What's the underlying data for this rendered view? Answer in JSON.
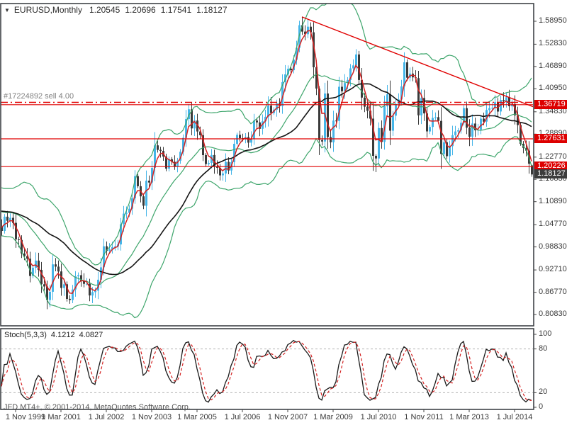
{
  "title": {
    "symbol": "EURUSD,Monthly",
    "open": "1.20545",
    "high": "1.20696",
    "low": "1.17541",
    "close": "1.18127"
  },
  "order_line": {
    "label": "#17224892 sell 4.00",
    "price": 1.3735
  },
  "footer": {
    "copyright": "JFD MT4+, © 2001-2014, MetaQuotes Software Corp."
  },
  "colors": {
    "up_candle": "#45b5e8",
    "down_candle": "#3a3a3a",
    "band": "#3da56b",
    "ma_fast": "#d42222",
    "ma_slow": "#141414",
    "hline": "#e00000",
    "badge_red": "#dd0000",
    "badge_dark": "#3c3c3c",
    "axis_text": "#3a3a3a",
    "border": "#3f4347",
    "grid_dash": "#b4b4b4",
    "stoch_main": "#1a1a1a",
    "stoch_signal": "#d42222",
    "tick": "#444444"
  },
  "price_axis": {
    "labels": [
      {
        "text": "1.58950",
        "price": 1.5895,
        "style": "plain"
      },
      {
        "text": "1.52830",
        "price": 1.5283,
        "style": "plain"
      },
      {
        "text": "1.46890",
        "price": 1.4689,
        "style": "plain"
      },
      {
        "text": "1.40950",
        "price": 1.4095,
        "style": "plain"
      },
      {
        "text": "1.36719",
        "price": 1.36719,
        "style": "red"
      },
      {
        "text": "1.34830",
        "price": 1.3483,
        "style": "plain"
      },
      {
        "text": "1.28890",
        "price": 1.2889,
        "style": "plain"
      },
      {
        "text": "1.27631",
        "price": 1.27631,
        "style": "red"
      },
      {
        "text": "1.22770",
        "price": 1.2277,
        "style": "plain"
      },
      {
        "text": "1.20226",
        "price": 1.20226,
        "style": "red"
      },
      {
        "text": "1.18127",
        "price": 1.18127,
        "style": "dark"
      },
      {
        "text": "1.16830",
        "price": 1.1683,
        "style": "plain"
      },
      {
        "text": "1.10890",
        "price": 1.1089,
        "style": "plain"
      },
      {
        "text": "1.04770",
        "price": 1.0477,
        "style": "plain"
      },
      {
        "text": "0.98830",
        "price": 0.9883,
        "style": "plain"
      },
      {
        "text": "0.92710",
        "price": 0.9271,
        "style": "plain"
      },
      {
        "text": "0.86770",
        "price": 0.8677,
        "style": "plain"
      },
      {
        "text": "0.80830",
        "price": 0.8083,
        "style": "plain"
      }
    ]
  },
  "date_axis": {
    "labels": [
      {
        "text": "1 Nov 1999",
        "month_index": 5
      },
      {
        "text": "1 Mar 2001",
        "month_index": 21
      },
      {
        "text": "1 Jul 2002",
        "month_index": 37
      },
      {
        "text": "1 Nov 2003",
        "month_index": 53
      },
      {
        "text": "1 Mar 2005",
        "month_index": 69
      },
      {
        "text": "1 Jul 2006",
        "month_index": 85
      },
      {
        "text": "1 Nov 2007",
        "month_index": 101
      },
      {
        "text": "1 Mar 2009",
        "month_index": 117
      },
      {
        "text": "1 Jul 2010",
        "month_index": 133
      },
      {
        "text": "1 Nov 2011",
        "month_index": 149
      },
      {
        "text": "1 Mar 2013",
        "month_index": 165
      },
      {
        "text": "1 Jul 2014",
        "month_index": 181
      }
    ]
  },
  "stoch_panel": {
    "label": "Stoch(5,3,3)",
    "k_value": "4.1212",
    "d_value": "4.0827",
    "axis_labels": [
      {
        "text": "100",
        "value": 100
      },
      {
        "text": "80",
        "value": 80
      },
      {
        "text": "20",
        "value": 20
      },
      {
        "text": "0",
        "value": 0
      }
    ],
    "grid_levels": [
      80,
      20
    ]
  },
  "chart_data": {
    "type": "candlestick",
    "symbol": "EURUSD",
    "timeframe": "Monthly",
    "start_month": "1999-06",
    "first_open": 1.042,
    "closes": [
      1.031,
      1.069,
      1.058,
      1.066,
      1.0525,
      1.0085,
      1.007,
      0.971,
      0.964,
      0.957,
      0.911,
      0.933,
      0.952,
      0.927,
      0.889,
      0.883,
      0.847,
      0.869,
      0.942,
      0.936,
      0.923,
      0.879,
      0.889,
      0.85,
      0.847,
      0.875,
      0.91,
      0.913,
      0.898,
      0.89,
      0.89,
      0.859,
      0.868,
      0.872,
      0.901,
      0.934,
      0.99,
      0.978,
      0.982,
      0.988,
      0.99,
      0.995,
      1.049,
      1.077,
      1.079,
      1.09,
      1.118,
      1.177,
      1.15,
      1.123,
      1.098,
      1.165,
      1.16,
      1.199,
      1.259,
      1.247,
      1.244,
      1.229,
      1.197,
      1.222,
      1.215,
      1.203,
      1.218,
      1.242,
      1.279,
      1.329,
      1.355,
      1.304,
      1.325,
      1.296,
      1.286,
      1.233,
      1.209,
      1.212,
      1.233,
      1.203,
      1.199,
      1.179,
      1.184,
      1.215,
      1.192,
      1.214,
      1.263,
      1.287,
      1.278,
      1.276,
      1.281,
      1.266,
      1.277,
      1.325,
      1.32,
      1.303,
      1.323,
      1.335,
      1.365,
      1.345,
      1.354,
      1.371,
      1.363,
      1.427,
      1.448,
      1.463,
      1.459,
      1.487,
      1.519,
      1.579,
      1.562,
      1.555,
      1.575,
      1.56,
      1.467,
      1.41,
      1.273,
      1.269,
      1.397,
      1.281,
      1.267,
      1.325,
      1.324,
      1.415,
      1.403,
      1.425,
      1.433,
      1.464,
      1.472,
      1.501,
      1.433,
      1.386,
      1.362,
      1.351,
      1.33,
      1.231,
      1.224,
      1.305,
      1.268,
      1.363,
      1.395,
      1.298,
      1.338,
      1.369,
      1.381,
      1.416,
      1.48,
      1.439,
      1.45,
      1.44,
      1.438,
      1.339,
      1.385,
      1.344,
      1.296,
      1.308,
      1.332,
      1.334,
      1.324,
      1.236,
      1.267,
      1.23,
      1.257,
      1.286,
      1.296,
      1.299,
      1.319,
      1.358,
      1.306,
      1.282,
      1.317,
      1.299,
      1.301,
      1.33,
      1.322,
      1.353,
      1.358,
      1.359,
      1.374,
      1.349,
      1.38,
      1.377,
      1.387,
      1.363,
      1.369,
      1.339,
      1.313,
      1.263,
      1.252,
      1.245,
      1.21,
      1.18127
    ],
    "pre_history_closes": [
      1.1,
      1.09,
      1.08,
      1.08,
      1.1,
      1.1,
      1.07,
      1.07,
      1.07,
      1.06,
      1.07,
      1.08,
      1.09,
      1.12,
      1.14,
      1.12,
      1.13,
      1.13,
      1.1,
      1.07,
      1.06,
      1.05,
      1.04,
      1.04
    ],
    "last_candle": {
      "open": 1.20545,
      "high": 1.20696,
      "low": 1.17541,
      "close": 1.18127
    },
    "key_extremes": [
      {
        "month": "2000-10",
        "low": 0.8225
      },
      {
        "month": "2008-04",
        "high": 1.6019
      },
      {
        "month": "2008-10",
        "low": 1.233
      },
      {
        "month": "2010-06",
        "low": 1.1877
      }
    ],
    "horizontal_lines": [
      1.36719,
      1.27631,
      1.20226
    ],
    "trendline": {
      "start_month": "2008-04",
      "start_price": 1.601,
      "end_price": 1.362
    },
    "indicators": {
      "bollinger": {
        "period": 20,
        "deviation": 2
      },
      "ma_fast_lwma": 5,
      "ma_slow_sma": 34,
      "stochastic": {
        "k": 5,
        "slowing": 3,
        "d": 3
      }
    }
  }
}
